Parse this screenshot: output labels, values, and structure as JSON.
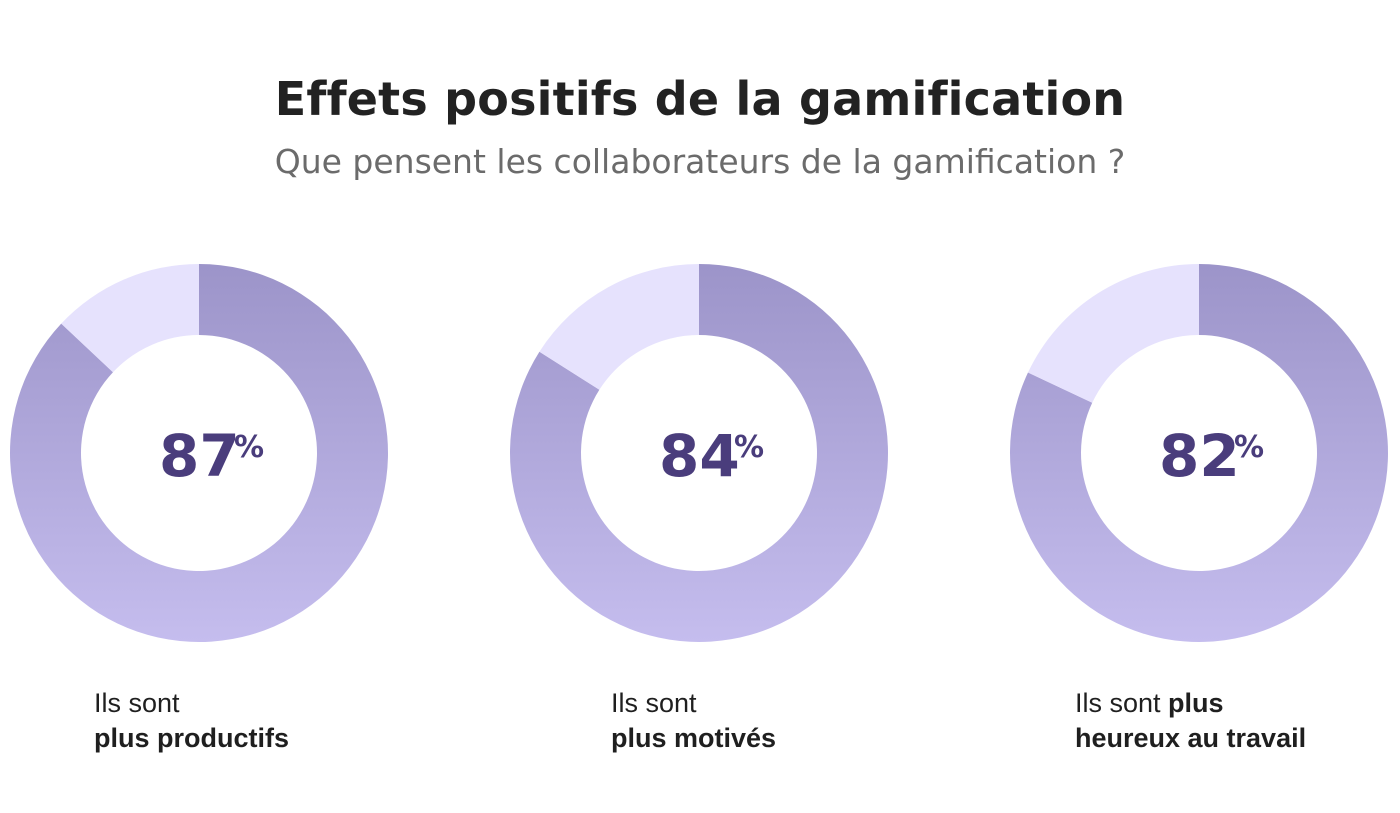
{
  "title": "Effets positifs de la gamification",
  "subtitle": "Que pensent les collaborateurs de la gamification ?",
  "colors": {
    "filled_dark": "#9c94c9",
    "filled_light": "#c5bdee",
    "remaining": "#e6e2fd",
    "value_text": "#4a3d7c"
  },
  "chart_data": [
    {
      "type": "pie",
      "values": [
        87,
        13
      ],
      "center_value": "87",
      "unit": "%",
      "caption": {
        "line1_prefix": "Ils sont",
        "line1_bold": "",
        "line2_bold": "plus productifs"
      }
    },
    {
      "type": "pie",
      "values": [
        84,
        16
      ],
      "center_value": "84",
      "unit": "%",
      "caption": {
        "line1_prefix": "Ils sont",
        "line1_bold": "",
        "line2_bold": "plus motivés"
      }
    },
    {
      "type": "pie",
      "values": [
        82,
        18
      ],
      "center_value": "82",
      "unit": "%",
      "caption": {
        "line1_prefix": "Ils sont ",
        "line1_bold": "plus",
        "line2_bold": "heureux au travail"
      }
    }
  ]
}
